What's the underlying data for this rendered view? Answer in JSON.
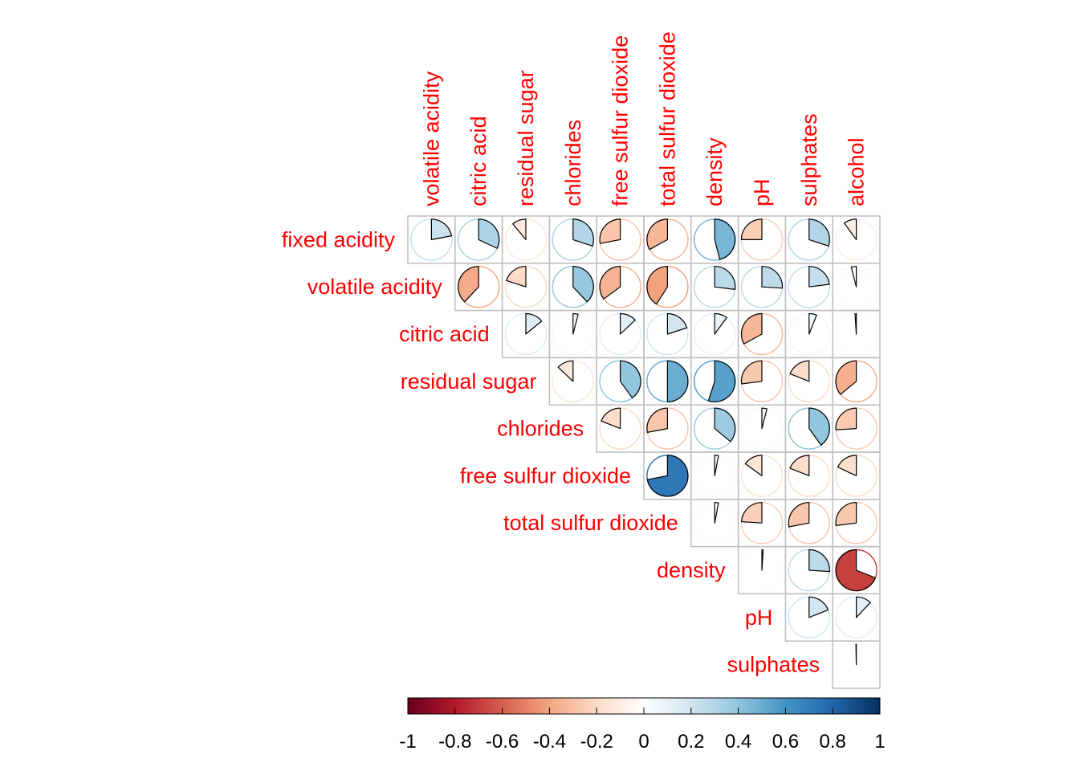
{
  "chart_data": {
    "type": "heatmap",
    "method": "pie",
    "layout": "upper",
    "variables": [
      "fixed acidity",
      "volatile acidity",
      "citric acid",
      "residual sugar",
      "chlorides",
      "free sulfur dioxide",
      "total sulfur dioxide",
      "density",
      "pH",
      "sulphates",
      "alcohol"
    ],
    "row_labels": [
      "fixed acidity",
      "volatile acidity",
      "citric acid",
      "residual sugar",
      "chlorides",
      "free sulfur dioxide",
      "total sulfur dioxide",
      "density",
      "pH",
      "sulphates"
    ],
    "col_labels": [
      "volatile acidity",
      "citric acid",
      "residual sugar",
      "chlorides",
      "free sulfur dioxide",
      "total sulfur dioxide",
      "density",
      "pH",
      "sulphates",
      "alcohol"
    ],
    "correlations": [
      [
        0.22,
        0.32,
        -0.11,
        0.3,
        -0.28,
        -0.33,
        0.46,
        -0.25,
        0.3,
        -0.1
      ],
      [
        -0.38,
        -0.2,
        0.38,
        -0.35,
        -0.41,
        0.27,
        0.26,
        0.23,
        -0.04
      ],
      [
        0.14,
        0.04,
        0.13,
        0.2,
        0.1,
        -0.33,
        0.06,
        -0.01
      ],
      [
        -0.13,
        0.4,
        0.5,
        0.55,
        -0.27,
        -0.19,
        -0.36
      ],
      [
        -0.19,
        -0.28,
        0.36,
        0.04,
        0.4,
        -0.26
      ],
      [
        0.72,
        0.03,
        -0.15,
        -0.19,
        -0.18
      ],
      [
        0.03,
        -0.24,
        -0.28,
        -0.27
      ],
      [
        0.01,
        0.26,
        -0.69
      ],
      [
        0.19,
        0.12
      ],
      [
        -0.003
      ]
    ],
    "colorbar": {
      "range": [
        -1,
        1
      ],
      "ticks": [
        "-1",
        "-0.8",
        "-0.6",
        "-0.4",
        "-0.2",
        "0",
        "0.2",
        "0.4",
        "0.6",
        "0.8",
        "1"
      ],
      "colors": [
        "#67001f",
        "#b2182b",
        "#d6604d",
        "#f4a582",
        "#fddbc7",
        "#ffffff",
        "#d1e5f0",
        "#92c5de",
        "#4393c3",
        "#2166ac",
        "#053061"
      ]
    },
    "label_color": "#ff0000",
    "grid_color": "#bebebe"
  }
}
